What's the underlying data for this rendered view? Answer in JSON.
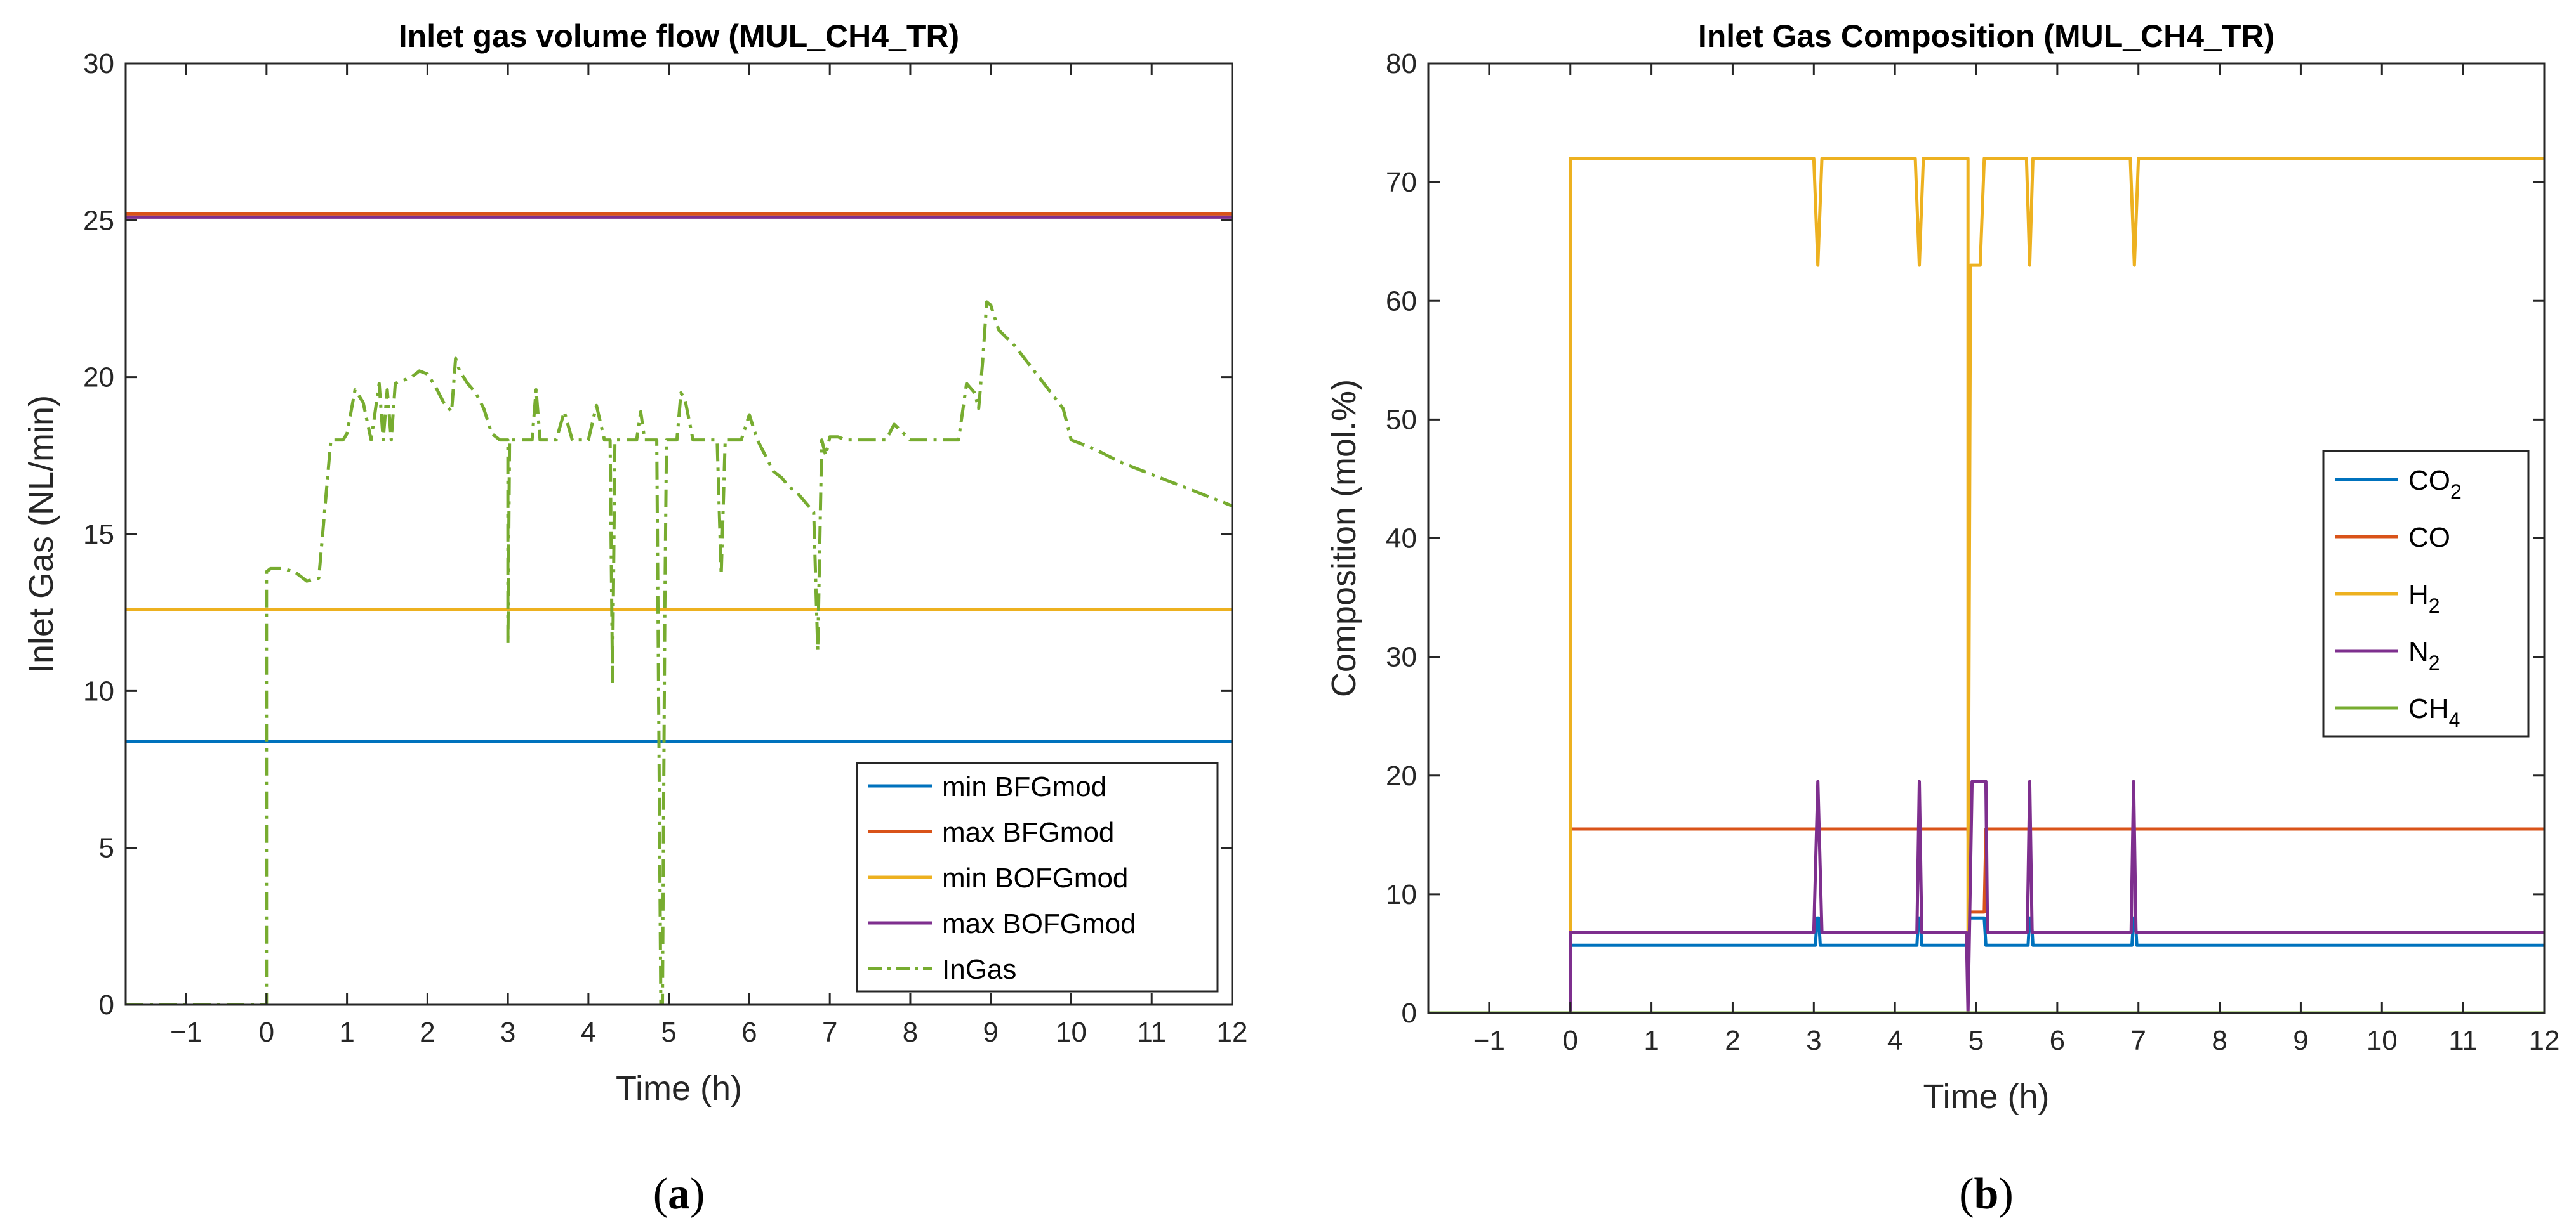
{
  "chart_data": [
    {
      "type": "line",
      "panel_label": "(a)",
      "panel_letter": "a",
      "title": "Inlet gas volume flow (MUL_CH4_TR)",
      "xlabel": "Time (h)",
      "ylabel": "Inlet Gas (NL/min)",
      "xlim": [
        -1.75,
        12
      ],
      "ylim": [
        0,
        30
      ],
      "xticks": [
        -1,
        0,
        1,
        2,
        3,
        4,
        5,
        6,
        7,
        8,
        9,
        10,
        11,
        12
      ],
      "xtick_labels": [
        "−1",
        "0",
        "1",
        "2",
        "3",
        "4",
        "5",
        "6",
        "7",
        "8",
        "9",
        "10",
        "11",
        "12"
      ],
      "yticks": [
        0,
        5,
        10,
        15,
        20,
        25,
        30
      ],
      "ytick_labels": [
        "0",
        "5",
        "10",
        "15",
        "20",
        "25",
        "30"
      ],
      "legend_position": "bottom-right",
      "series": [
        {
          "name": "min BFGmod",
          "color": "#0072BD",
          "style": "solid",
          "x": [
            -1.75,
            12
          ],
          "y": [
            8.4,
            8.4
          ]
        },
        {
          "name": "max BFGmod",
          "color": "#D95319",
          "style": "solid",
          "x": [
            -1.75,
            12
          ],
          "y": [
            25.2,
            25.2
          ]
        },
        {
          "name": "min BOFGmod",
          "color": "#EDB120",
          "style": "solid",
          "x": [
            -1.75,
            12
          ],
          "y": [
            12.6,
            12.6
          ]
        },
        {
          "name": "max BOFGmod",
          "color": "#7E2F8E",
          "style": "solid",
          "x": [
            -1.75,
            12
          ],
          "y": [
            25.1,
            25.1
          ]
        },
        {
          "name": "InGas",
          "color": "#77AC30",
          "style": "dashdot",
          "x": [
            -1.75,
            0,
            0,
            0.05,
            0.2,
            0.35,
            0.5,
            0.65,
            0.8,
            0.95,
            1.0,
            1.1,
            1.2,
            1.3,
            1.4,
            1.45,
            1.5,
            1.55,
            1.6,
            1.7,
            1.8,
            1.9,
            2.0,
            2.1,
            2.2,
            2.3,
            2.35,
            2.4,
            2.5,
            2.6,
            2.7,
            2.8,
            2.9,
            3.0,
            3.0,
            3.02,
            3.05,
            3.1,
            3.2,
            3.3,
            3.35,
            3.4,
            3.5,
            3.6,
            3.7,
            3.8,
            3.9,
            4.0,
            4.1,
            4.2,
            4.27,
            4.3,
            4.33,
            4.4,
            4.6,
            4.65,
            4.7,
            4.8,
            4.85,
            4.9,
            4.92,
            4.95,
            4.97,
            5.0,
            5.05,
            5.1,
            5.15,
            5.2,
            5.3,
            5.4,
            5.5,
            5.6,
            5.65,
            5.7,
            5.75,
            5.8,
            5.9,
            6.0,
            6.1,
            6.2,
            6.3,
            6.4,
            6.5,
            6.6,
            6.7,
            6.8,
            6.85,
            6.9,
            6.95,
            7.0,
            7.05,
            7.1,
            7.2,
            7.5,
            7.7,
            7.8,
            8.0,
            8.2,
            8.4,
            8.6,
            8.7,
            8.8,
            8.85,
            8.9,
            8.95,
            9.0,
            9.05,
            9.1,
            9.3,
            9.6,
            9.9,
            10.0,
            10.3,
            10.6,
            11.0,
            11.5,
            12.0
          ],
          "y": [
            0,
            0,
            13.8,
            13.9,
            13.9,
            13.8,
            13.5,
            13.6,
            18.0,
            18.0,
            18.2,
            19.6,
            19.2,
            18.0,
            19.8,
            18.0,
            19.6,
            18.0,
            19.8,
            19.9,
            20.0,
            20.2,
            20.1,
            19.7,
            19.2,
            18.9,
            20.6,
            20.2,
            19.8,
            19.5,
            19.0,
            18.2,
            18.0,
            18.0,
            11.5,
            18.0,
            18.0,
            18.0,
            18.0,
            18.0,
            19.6,
            18.0,
            18.0,
            18.0,
            18.9,
            18.0,
            18.0,
            18.0,
            19.1,
            18.0,
            18.0,
            10.3,
            18.0,
            18.0,
            18.0,
            18.9,
            18.0,
            18.0,
            18.0,
            0,
            0,
            12.6,
            18.0,
            18.0,
            18.0,
            18.0,
            19.5,
            19.3,
            18.0,
            18.0,
            18.0,
            18.0,
            13.7,
            18.0,
            18.0,
            18.0,
            18.0,
            18.8,
            18.0,
            17.5,
            17.0,
            16.8,
            16.5,
            16.3,
            16.0,
            15.7,
            11.3,
            18.0,
            17.5,
            18.1,
            18.1,
            18.1,
            18.0,
            18.0,
            18.0,
            18.5,
            18.0,
            18.0,
            18.0,
            18.0,
            19.8,
            19.5,
            19.0,
            20.5,
            22.4,
            22.3,
            21.9,
            21.5,
            21.0,
            20.0,
            19.0,
            18.0,
            17.7,
            17.3,
            16.9,
            16.4,
            15.9
          ]
        }
      ]
    },
    {
      "type": "line",
      "panel_label": "(b)",
      "panel_letter": "b",
      "title": "Inlet Gas Composition (MUL_CH4_TR)",
      "xlabel": "Time (h)",
      "ylabel": "Composition (mol.%)",
      "xlim": [
        -1.75,
        12
      ],
      "ylim": [
        0,
        80
      ],
      "xticks": [
        -1,
        0,
        1,
        2,
        3,
        4,
        5,
        6,
        7,
        8,
        9,
        10,
        11,
        12
      ],
      "xtick_labels": [
        "−1",
        "0",
        "1",
        "2",
        "3",
        "4",
        "5",
        "6",
        "7",
        "8",
        "9",
        "10",
        "11",
        "12"
      ],
      "yticks": [
        0,
        10,
        20,
        30,
        40,
        50,
        60,
        70,
        80
      ],
      "ytick_labels": [
        "0",
        "10",
        "20",
        "30",
        "40",
        "50",
        "60",
        "70",
        "80"
      ],
      "legend_position": "right",
      "series": [
        {
          "name": "CO2",
          "name_base": "CO",
          "name_sub": "2",
          "color": "#0072BD",
          "style": "solid",
          "x": [
            -1.75,
            0,
            0,
            3.02,
            3.04,
            3.06,
            3.08,
            4.27,
            4.29,
            4.31,
            4.33,
            4.9,
            4.92,
            5.1,
            5.12,
            5.64,
            5.66,
            5.68,
            5.7,
            6.92,
            6.94,
            6.96,
            6.98,
            12
          ],
          "y": [
            0,
            0,
            5.7,
            5.7,
            8.0,
            8.0,
            5.7,
            5.7,
            8.0,
            8.0,
            5.7,
            5.7,
            8.0,
            8.0,
            5.7,
            5.7,
            8.0,
            8.0,
            5.7,
            5.7,
            8.0,
            8.0,
            5.7,
            5.7
          ]
        },
        {
          "name": "CO",
          "name_base": "CO",
          "name_sub": "",
          "color": "#D95319",
          "style": "solid",
          "x": [
            -1.75,
            0,
            0,
            4.9,
            4.92,
            5.1,
            5.12,
            12
          ],
          "y": [
            0,
            0,
            15.5,
            15.5,
            8.5,
            8.5,
            15.5,
            15.5
          ]
        },
        {
          "name": "H2",
          "name_base": "H",
          "name_sub": "2",
          "color": "#EDB120",
          "style": "solid",
          "x": [
            -1.75,
            0,
            0,
            3.0,
            3.05,
            3.1,
            4.25,
            4.3,
            4.35,
            4.9,
            4.9,
            4.93,
            4.97,
            5.05,
            5.1,
            5.15,
            5.62,
            5.66,
            5.7,
            6.9,
            6.95,
            7.0,
            12
          ],
          "y": [
            0,
            0,
            72,
            72,
            63,
            72,
            72,
            63,
            72,
            72,
            6,
            63,
            63,
            63,
            72,
            72,
            72,
            63,
            72,
            72,
            63,
            72,
            72
          ]
        },
        {
          "name": "N2",
          "name_base": "N",
          "name_sub": "2",
          "color": "#7E2F8E",
          "style": "solid",
          "x": [
            -1.75,
            0,
            0,
            3.0,
            3.05,
            3.1,
            4.27,
            4.3,
            4.33,
            4.88,
            4.9,
            4.95,
            5.05,
            5.12,
            5.14,
            5.63,
            5.66,
            5.69,
            6.91,
            6.94,
            6.97,
            12
          ],
          "y": [
            0,
            0,
            6.8,
            6.8,
            19.5,
            6.8,
            6.8,
            19.5,
            6.8,
            6.8,
            0,
            19.5,
            19.5,
            19.5,
            6.8,
            6.8,
            19.5,
            6.8,
            6.8,
            19.5,
            6.8,
            6.8
          ]
        },
        {
          "name": "CH4",
          "name_base": "CH",
          "name_sub": "4",
          "color": "#77AC30",
          "style": "solid",
          "x": [
            -1.75,
            12
          ],
          "y": [
            0,
            0
          ]
        }
      ]
    }
  ]
}
